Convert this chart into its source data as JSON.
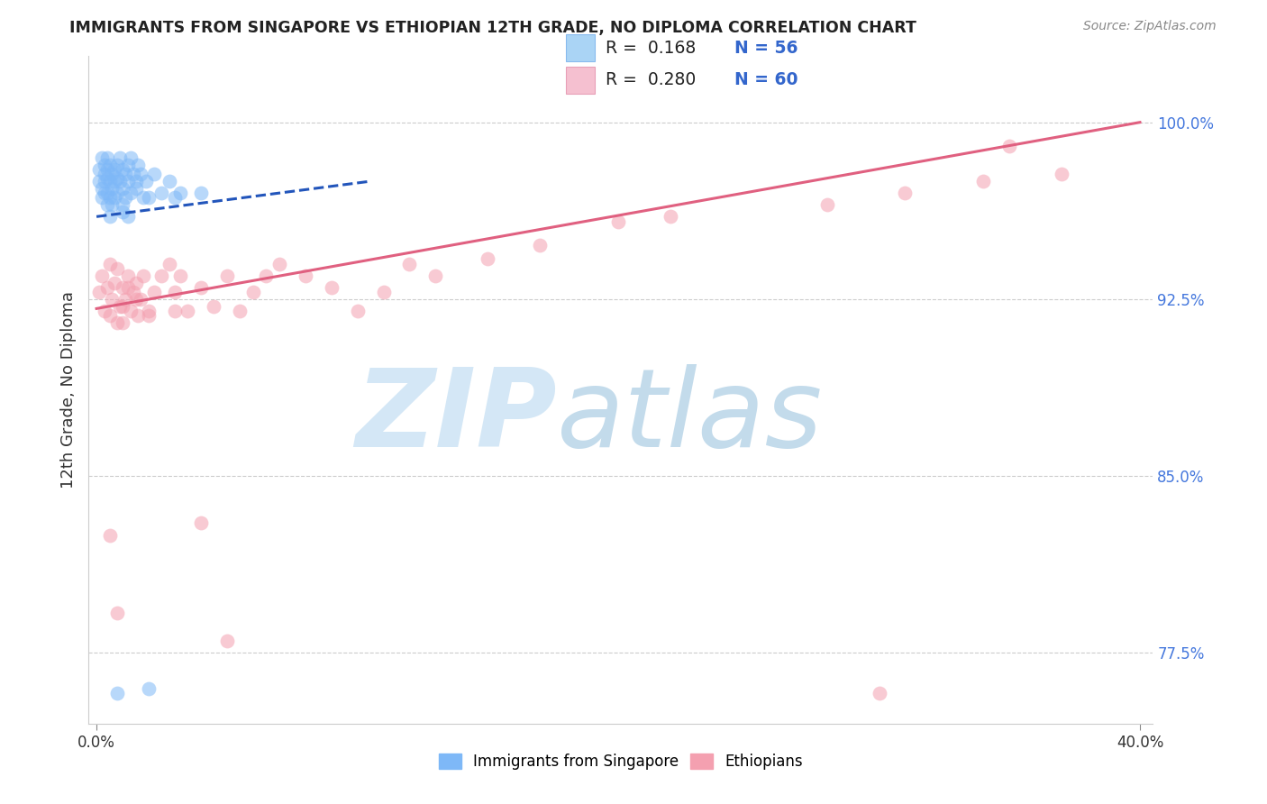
{
  "title": "IMMIGRANTS FROM SINGAPORE VS ETHIOPIAN 12TH GRADE, NO DIPLOMA CORRELATION CHART",
  "source": "Source: ZipAtlas.com",
  "ylabel": "12th Grade, No Diploma",
  "watermark_zip": "ZIP",
  "watermark_atlas": "atlas",
  "legend_r1": "R =  0.168",
  "legend_n1": "N = 56",
  "legend_r2": "R =  0.280",
  "legend_n2": "N = 60",
  "singapore_color": "#7eb8f7",
  "singapore_edge": "#6aa8e8",
  "ethiopian_color": "#f4a0b0",
  "ethiopian_edge": "#e090a0",
  "singapore_line_color": "#2255bb",
  "ethiopian_line_color": "#e06080",
  "background_color": "#ffffff",
  "grid_color": "#cccccc",
  "ytick_color": "#4477dd",
  "title_color": "#222222",
  "source_color": "#888888",
  "xlim": [
    -0.003,
    0.405
  ],
  "ylim": [
    0.745,
    1.028
  ],
  "ytick_positions": [
    0.775,
    0.85,
    0.925,
    1.0
  ],
  "ytick_labels": [
    "77.5%",
    "85.0%",
    "92.5%",
    "100.0%"
  ],
  "sg_x": [
    0.001,
    0.001,
    0.002,
    0.002,
    0.002,
    0.003,
    0.003,
    0.003,
    0.003,
    0.004,
    0.004,
    0.004,
    0.004,
    0.004,
    0.005,
    0.005,
    0.005,
    0.005,
    0.006,
    0.006,
    0.006,
    0.007,
    0.007,
    0.007,
    0.008,
    0.008,
    0.008,
    0.009,
    0.009,
    0.01,
    0.01,
    0.01,
    0.011,
    0.011,
    0.012,
    0.012,
    0.013,
    0.013,
    0.014,
    0.015,
    0.016,
    0.017,
    0.018,
    0.019,
    0.02,
    0.022,
    0.025,
    0.028,
    0.032,
    0.012,
    0.015,
    0.03,
    0.02,
    0.04,
    0.008,
    0.01
  ],
  "sg_y": [
    0.98,
    0.975,
    0.985,
    0.972,
    0.968,
    0.978,
    0.982,
    0.975,
    0.97,
    0.98,
    0.976,
    0.985,
    0.97,
    0.965,
    0.982,
    0.975,
    0.968,
    0.96,
    0.978,
    0.972,
    0.965,
    0.98,
    0.975,
    0.968,
    0.982,
    0.976,
    0.97,
    0.985,
    0.975,
    0.98,
    0.972,
    0.965,
    0.978,
    0.968,
    0.982,
    0.975,
    0.985,
    0.97,
    0.978,
    0.975,
    0.982,
    0.978,
    0.968,
    0.975,
    0.968,
    0.978,
    0.97,
    0.975,
    0.97,
    0.96,
    0.972,
    0.968,
    0.76,
    0.97,
    0.758,
    0.962
  ],
  "eth_x": [
    0.001,
    0.002,
    0.003,
    0.004,
    0.005,
    0.005,
    0.006,
    0.007,
    0.008,
    0.009,
    0.01,
    0.01,
    0.011,
    0.012,
    0.013,
    0.014,
    0.015,
    0.016,
    0.017,
    0.018,
    0.02,
    0.022,
    0.025,
    0.028,
    0.03,
    0.032,
    0.035,
    0.04,
    0.045,
    0.05,
    0.055,
    0.06,
    0.065,
    0.07,
    0.08,
    0.09,
    0.1,
    0.11,
    0.12,
    0.13,
    0.15,
    0.17,
    0.2,
    0.22,
    0.008,
    0.01,
    0.012,
    0.015,
    0.02,
    0.03,
    0.04,
    0.05,
    0.28,
    0.31,
    0.34,
    0.37,
    0.005,
    0.008,
    0.3,
    0.35
  ],
  "eth_y": [
    0.928,
    0.935,
    0.92,
    0.93,
    0.94,
    0.918,
    0.925,
    0.932,
    0.938,
    0.922,
    0.93,
    0.915,
    0.925,
    0.935,
    0.92,
    0.928,
    0.932,
    0.918,
    0.925,
    0.935,
    0.92,
    0.928,
    0.935,
    0.94,
    0.928,
    0.935,
    0.92,
    0.93,
    0.922,
    0.935,
    0.92,
    0.928,
    0.935,
    0.94,
    0.935,
    0.93,
    0.92,
    0.928,
    0.94,
    0.935,
    0.942,
    0.948,
    0.958,
    0.96,
    0.915,
    0.922,
    0.93,
    0.925,
    0.918,
    0.92,
    0.83,
    0.78,
    0.965,
    0.97,
    0.975,
    0.978,
    0.825,
    0.792,
    0.758,
    0.99
  ],
  "sg_line_x0": 0.0,
  "sg_line_x1": 0.105,
  "sg_line_y0": 0.96,
  "sg_line_y1": 0.975,
  "eth_line_x0": 0.0,
  "eth_line_x1": 0.4,
  "eth_line_y0": 0.921,
  "eth_line_y1": 1.0
}
